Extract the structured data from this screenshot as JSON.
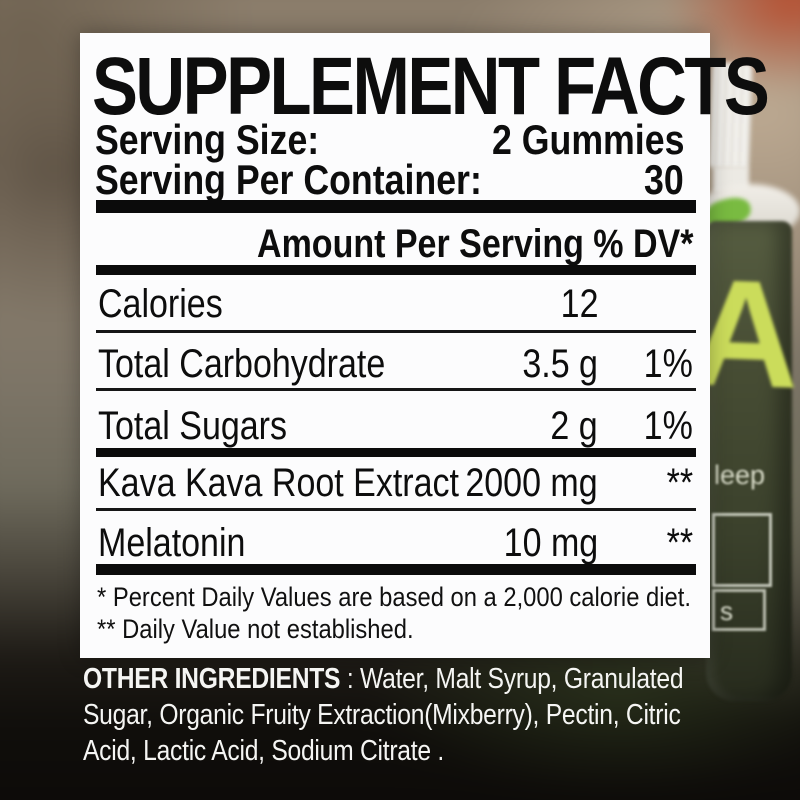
{
  "panel": {
    "title": "SUPPLEMENT FACTS",
    "serving_size_label": "Serving Size:",
    "serving_size_value": "2 Gummies",
    "servings_per_container_label": "Serving Per Container:",
    "servings_per_container_value": "30",
    "column_header": "Amount Per Serving % DV*",
    "rows": [
      {
        "name": "Calories",
        "amount": "12",
        "dv": ""
      },
      {
        "name": "Total Carbohydrate",
        "amount": "3.5 g",
        "dv": "1%"
      },
      {
        "name": "Total Sugars",
        "amount": "2 g",
        "dv": "1%"
      },
      {
        "name": "Kava Kava Root Extract",
        "amount": "2000 mg",
        "dv": "**"
      },
      {
        "name": "Melatonin",
        "amount": "10 mg",
        "dv": "**"
      }
    ],
    "footnotes": [
      "* Percent Daily Values are based on a 2,000 calorie diet.",
      "** Daily Value not established."
    ]
  },
  "other_ingredients": {
    "label": "OTHER INGREDIENTS",
    "line1_rest": " : Water, Malt Syrup, Granulated",
    "line2": "Sugar, Organic Fruity Extraction(Mixberry), Pectin, Citric",
    "line3": "Acid, Lactic Acid, Sodium Citrate ."
  },
  "bottle": {
    "label_letter": "A",
    "label_text": "leep",
    "box_text": "s"
  },
  "colors": {
    "panel_background": "#fcfcfd",
    "panel_text": "#0d0d0d",
    "background_brown": "#8b7d6b",
    "background_tan": "#c2ae96",
    "background_orange": "#b8492a",
    "background_bottom": "#0c0a08",
    "bottle_body_green": "#474d34",
    "bottle_cap_white": "#f7f6f3",
    "gummy_green": "#79bb41",
    "label_letter_green": "#cbdc5b",
    "ingredients_text": "#f5f5f3"
  }
}
